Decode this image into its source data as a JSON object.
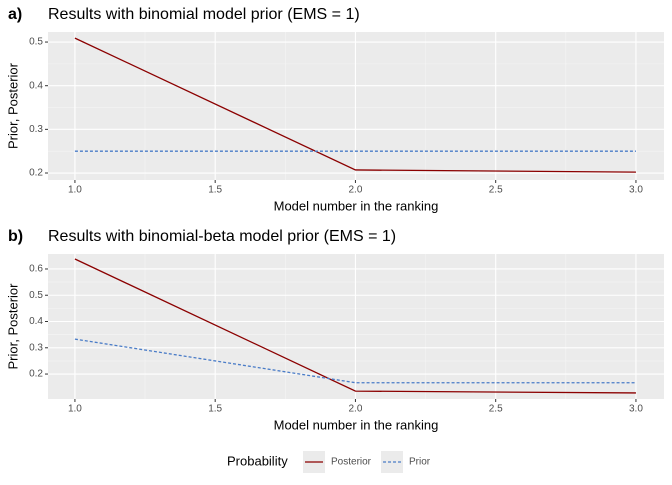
{
  "chart_data": [
    {
      "type": "line",
      "tag": "a)",
      "title": "Results with binomial model prior (EMS = 1)",
      "x_label": "Model number in the ranking",
      "y_label": "Prior, Posterior",
      "x": [
        1,
        2,
        3
      ],
      "series": [
        {
          "name": "Posterior",
          "color": "#8b0000",
          "linetype": "solid",
          "values": [
            0.509,
            0.207,
            0.202
          ]
        },
        {
          "name": "Prior",
          "color": "#4a7cc7",
          "linetype": "dashed",
          "values": [
            0.25,
            0.25,
            0.25
          ]
        }
      ],
      "xlim": [
        0.904,
        3.1
      ],
      "xticks": [
        {
          "value": 1,
          "label": "1.0"
        },
        1.5,
        {
          "value": 2,
          "label": "2.0"
        },
        2.5,
        {
          "value": 3,
          "label": "3.0"
        }
      ],
      "ylim": [
        0.184,
        0.523
      ],
      "yticks": [
        0.2,
        0.3,
        0.4,
        0.5
      ],
      "grid": true
    },
    {
      "type": "line",
      "tag": "b)",
      "title": "Results with binomial-beta model prior (EMS = 1)",
      "x_label": "Model number in the ranking",
      "y_label": "Prior, Posterior",
      "x": [
        1,
        2,
        3
      ],
      "series": [
        {
          "name": "Posterior",
          "color": "#8b0000",
          "linetype": "solid",
          "values": [
            0.638,
            0.135,
            0.128
          ]
        },
        {
          "name": "Prior",
          "color": "#4a7cc7",
          "linetype": "dashed",
          "values": [
            0.333,
            0.167,
            0.167
          ]
        }
      ],
      "xlim": [
        0.904,
        3.1
      ],
      "xticks": [
        {
          "value": 1,
          "label": "1.0"
        },
        1.5,
        {
          "value": 2,
          "label": "2.0"
        },
        2.5,
        {
          "value": 3,
          "label": "3.0"
        }
      ],
      "ylim": [
        0.105,
        0.657
      ],
      "yticks": [
        0.2,
        0.3,
        0.4,
        0.5,
        0.6
      ],
      "grid": true,
      "legend_title": "Probability",
      "legend_position": "bottom"
    }
  ]
}
